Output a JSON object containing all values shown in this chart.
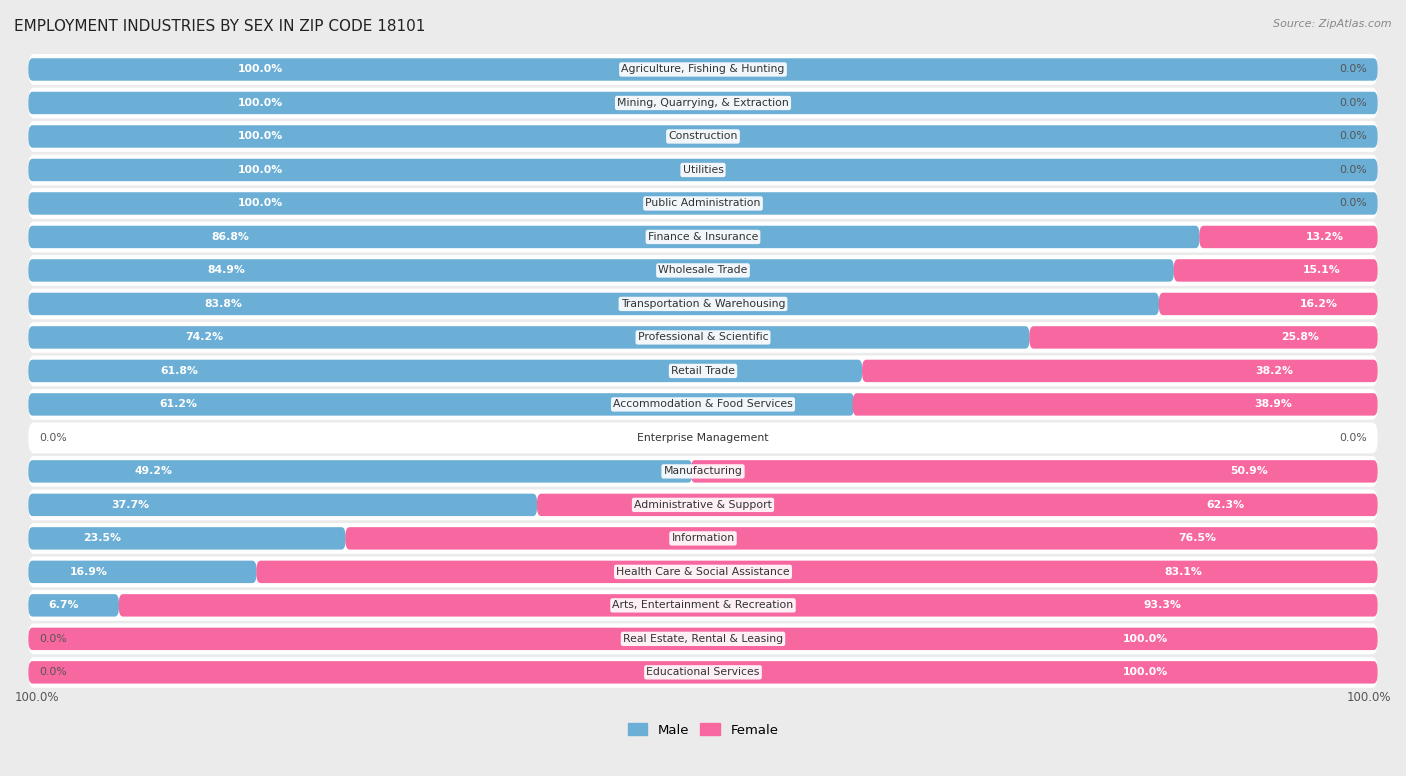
{
  "title": "EMPLOYMENT INDUSTRIES BY SEX IN ZIP CODE 18101",
  "source": "Source: ZipAtlas.com",
  "male_color": "#6baed6",
  "female_color": "#f768a1",
  "row_bg_odd": "#f5f5f5",
  "row_bg_even": "#e8e8e8",
  "background_color": "#ebebeb",
  "industries": [
    "Agriculture, Fishing & Hunting",
    "Mining, Quarrying, & Extraction",
    "Construction",
    "Utilities",
    "Public Administration",
    "Finance & Insurance",
    "Wholesale Trade",
    "Transportation & Warehousing",
    "Professional & Scientific",
    "Retail Trade",
    "Accommodation & Food Services",
    "Enterprise Management",
    "Manufacturing",
    "Administrative & Support",
    "Information",
    "Health Care & Social Assistance",
    "Arts, Entertainment & Recreation",
    "Real Estate, Rental & Leasing",
    "Educational Services"
  ],
  "male_pct": [
    100.0,
    100.0,
    100.0,
    100.0,
    100.0,
    86.8,
    84.9,
    83.8,
    74.2,
    61.8,
    61.2,
    0.0,
    49.2,
    37.7,
    23.5,
    16.9,
    6.7,
    0.0,
    0.0
  ],
  "female_pct": [
    0.0,
    0.0,
    0.0,
    0.0,
    0.0,
    13.2,
    15.1,
    16.2,
    25.8,
    38.2,
    38.9,
    0.0,
    50.9,
    62.3,
    76.5,
    83.1,
    93.3,
    100.0,
    100.0
  ],
  "legend_labels": [
    "Male",
    "Female"
  ],
  "bar_height": 0.65
}
